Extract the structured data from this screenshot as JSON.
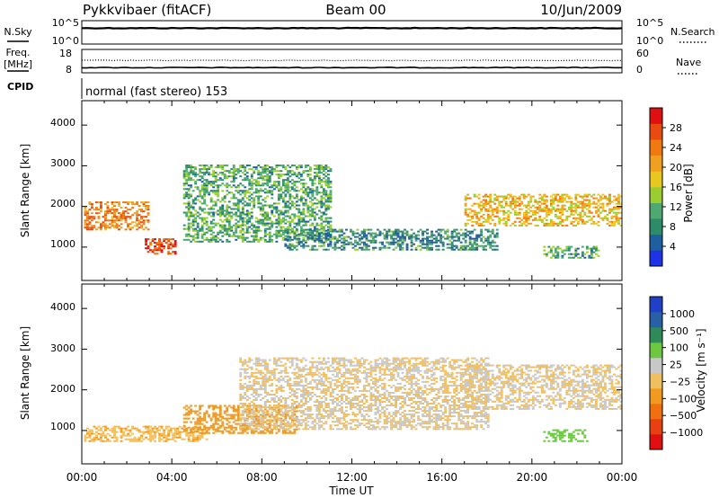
{
  "header": {
    "station": "Pykkvibaer (fitACF)",
    "beam": "Beam 00",
    "date": "10/Jun/2009"
  },
  "noise_panel": {
    "left_label": "N.Sky",
    "left_ticks": [
      "10^5",
      "10^0"
    ],
    "right_ticks": [
      "10^5",
      "10^0"
    ],
    "right_label": "N.Search"
  },
  "freq_panel": {
    "left_label_line1": "Freq.",
    "left_label_line2": "[MHz]",
    "left_ticks": [
      "18",
      "8"
    ],
    "right_ticks": [
      "60",
      "0"
    ],
    "right_label": "Nave",
    "cpid_label": "CPID",
    "cpid_text": "normal (fast stereo) 153"
  },
  "x_axis": {
    "ticks": [
      "00:00",
      "04:00",
      "08:00",
      "12:00",
      "16:00",
      "20:00",
      "00:00"
    ],
    "label": "Time UT"
  },
  "power_panel": {
    "ylabel": "Slant Range [km]",
    "yticks": [
      "1000",
      "2000",
      "3000",
      "4000"
    ],
    "colorbar_label": "Power [dB]",
    "colorbar_ticks": [
      "4",
      "8",
      "12",
      "16",
      "20",
      "24",
      "28"
    ],
    "colorbar_colors": [
      "#1e32e6",
      "#1e5fa0",
      "#2e8b6a",
      "#4fa870",
      "#9acd32",
      "#e8c820",
      "#f0a020",
      "#f07a10",
      "#e84a10",
      "#e01010"
    ]
  },
  "velocity_panel": {
    "ylabel": "Slant Range [km]",
    "yticks": [
      "1000",
      "2000",
      "3000",
      "4000"
    ],
    "colorbar_label": "Velocity  [m s⁻¹]",
    "colorbar_ticks": [
      "1000",
      "500",
      "100",
      "25",
      "−25",
      "−100",
      "−500",
      "−1000"
    ],
    "colorbar_colors": [
      "#2040c8",
      "#2860a8",
      "#2e8b57",
      "#6cc840",
      "#c8c8c8",
      "#f0c060",
      "#f09a20",
      "#f07010",
      "#e84010",
      "#e01010"
    ]
  },
  "chart_data": [
    {
      "type": "line",
      "title": "Pykkvibaer (fitACF)  Beam 00  10/Jun/2009",
      "x": [
        "00:00",
        "04:00",
        "08:00",
        "12:00",
        "16:00",
        "20:00",
        "00:00"
      ],
      "series": [
        {
          "name": "N.Sky",
          "values": [
            3000,
            3000,
            3000,
            3000,
            3000,
            3000,
            3000
          ]
        },
        {
          "name": "N.Search",
          "values": [
            3000,
            3000,
            3000,
            3000,
            3000,
            3000,
            3000
          ]
        }
      ],
      "ylim": [
        1,
        100000
      ],
      "yscale": "log"
    },
    {
      "type": "line",
      "x": [
        "00:00",
        "04:00",
        "08:00",
        "12:00",
        "16:00",
        "20:00",
        "00:00"
      ],
      "series": [
        {
          "name": "Freq.",
          "values": [
            10,
            10,
            10,
            10,
            10,
            10,
            10
          ]
        },
        {
          "name": "Nave",
          "values": [
            32,
            32,
            32,
            32,
            32,
            32,
            32
          ]
        }
      ],
      "ylim": [
        8,
        18
      ],
      "ylim_right": [
        0,
        60
      ]
    },
    {
      "type": "heatmap",
      "xlabel": "Time UT",
      "ylabel": "Slant Range [km]",
      "zlabel": "Power [dB]",
      "xlim": [
        0,
        24
      ],
      "ylim": [
        180,
        4600
      ],
      "zlim": [
        0,
        30
      ],
      "bands": [
        {
          "t_start": 0.1,
          "t_end": 3.0,
          "range_start": 1400,
          "range_end": 2100,
          "power": 22
        },
        {
          "t_start": 2.8,
          "t_end": 4.2,
          "range_start": 800,
          "range_end": 1200,
          "power": 26
        },
        {
          "t_start": 4.5,
          "t_end": 11.0,
          "range_start": 1100,
          "range_end": 3000,
          "power": 10
        },
        {
          "t_start": 9.0,
          "t_end": 18.5,
          "range_start": 900,
          "range_end": 1400,
          "power": 8
        },
        {
          "t_start": 17.0,
          "t_end": 24.0,
          "range_start": 1500,
          "range_end": 2300,
          "power": 18
        },
        {
          "t_start": 20.5,
          "t_end": 23.0,
          "range_start": 700,
          "range_end": 1000,
          "power": 10
        }
      ]
    },
    {
      "type": "heatmap",
      "xlabel": "Time UT",
      "ylabel": "Slant Range [km]",
      "zlabel": "Velocity [m s-1]",
      "xlim": [
        0,
        24
      ],
      "ylim": [
        180,
        4600
      ],
      "zlim": [
        -1000,
        1000
      ],
      "bands": [
        {
          "t_start": 0.1,
          "t_end": 5.5,
          "range_start": 700,
          "range_end": 1100,
          "velocity": -150
        },
        {
          "t_start": 4.5,
          "t_end": 9.5,
          "range_start": 900,
          "range_end": 1600,
          "velocity": -300
        },
        {
          "t_start": 7.0,
          "t_end": 18.0,
          "range_start": 1000,
          "range_end": 2800,
          "velocity": 0
        },
        {
          "t_start": 17.0,
          "t_end": 24.0,
          "range_start": 1500,
          "range_end": 2600,
          "velocity": 0
        },
        {
          "t_start": 20.5,
          "t_end": 22.5,
          "range_start": 700,
          "range_end": 1000,
          "velocity": 300
        }
      ]
    }
  ]
}
